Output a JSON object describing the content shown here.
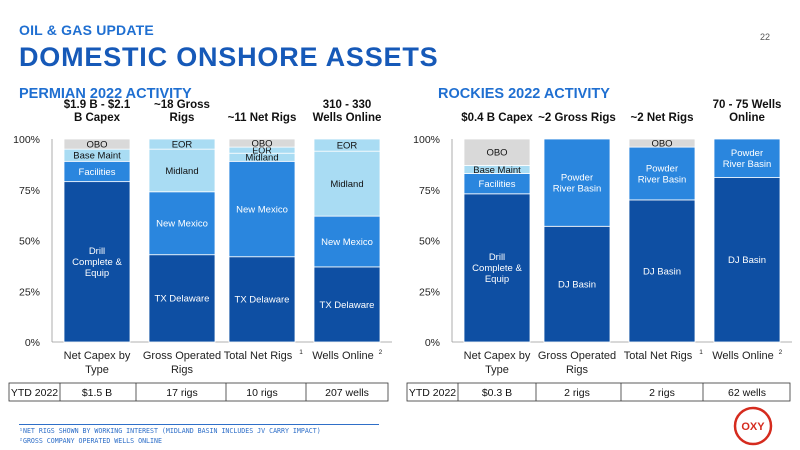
{
  "header": {
    "supertitle": "OIL & GAS UPDATE",
    "title": "DOMESTIC ONSHORE ASSETS",
    "page_number": "22"
  },
  "footnotes": [
    "¹NET RIGS SHOWN BY WORKING INTEREST (MIDLAND BASIN INCLUDES JV CARRY IMPACT)",
    "²GROSS COMPANY OPERATED WELLS ONLINE"
  ],
  "logo": {
    "text": "OXY"
  },
  "colors": {
    "dark_blue": "#0e4fa3",
    "mid_blue": "#2a86de",
    "light_blue": "#a9dcf3",
    "gray": "#d9d9d9",
    "title_blue": "#1659b8"
  },
  "chart_data": [
    {
      "type": "bar",
      "stacked": true,
      "title": "PERMIAN 2022 ACTIVITY",
      "ylim": [
        0,
        100
      ],
      "yticks": [
        "0%",
        "25%",
        "50%",
        "75%",
        "100%"
      ],
      "categories": [
        {
          "label": "Net Capex by Type",
          "sup": "",
          "header": "$1.9 B - $2.1 B Capex",
          "ytd": "$1.5 B"
        },
        {
          "label": "Gross Operated Rigs",
          "sup": "",
          "header": "~18 Gross Rigs",
          "ytd": "17 rigs"
        },
        {
          "label": "Total Net Rigs",
          "sup": "1",
          "header": "~11 Net Rigs",
          "ytd": "10 rigs"
        },
        {
          "label": "Wells Online",
          "sup": "2",
          "header": "310 - 330 Wells Online",
          "ytd": "207 wells"
        }
      ],
      "ytd_label": "YTD 2022",
      "bars": [
        [
          {
            "name": "Drill Complete & Equip",
            "value": 79,
            "color": "#0e4fa3"
          },
          {
            "name": "Facilities",
            "value": 10,
            "color": "#2a86de"
          },
          {
            "name": "Base Maint",
            "value": 6,
            "color": "#a9dcf3"
          },
          {
            "name": "OBO",
            "value": 5,
            "color": "#d9d9d9"
          }
        ],
        [
          {
            "name": "TX Delaware",
            "value": 43,
            "color": "#0e4fa3"
          },
          {
            "name": "New Mexico",
            "value": 31,
            "color": "#2a86de"
          },
          {
            "name": "Midland",
            "value": 21,
            "color": "#a9dcf3"
          },
          {
            "name": "EOR",
            "value": 5,
            "color": "#a9dcf3"
          }
        ],
        [
          {
            "name": "TX Delaware",
            "value": 42,
            "color": "#0e4fa3"
          },
          {
            "name": "New Mexico",
            "value": 47,
            "color": "#2a86de"
          },
          {
            "name": "Midland",
            "value": 4,
            "color": "#a9dcf3"
          },
          {
            "name": "EOR",
            "value": 3,
            "color": "#a9dcf3"
          },
          {
            "name": "OBO",
            "value": 4,
            "color": "#d9d9d9"
          }
        ],
        [
          {
            "name": "TX Delaware",
            "value": 37,
            "color": "#0e4fa3"
          },
          {
            "name": "New Mexico",
            "value": 25,
            "color": "#2a86de"
          },
          {
            "name": "Midland",
            "value": 32,
            "color": "#a9dcf3"
          },
          {
            "name": "EOR",
            "value": 6,
            "color": "#a9dcf3"
          }
        ]
      ]
    },
    {
      "type": "bar",
      "stacked": true,
      "title": "ROCKIES 2022 ACTIVITY",
      "ylim": [
        0,
        100
      ],
      "yticks": [
        "0%",
        "25%",
        "50%",
        "75%",
        "100%"
      ],
      "categories": [
        {
          "label": "Net Capex by Type",
          "sup": "",
          "header": "$0.4 B Capex",
          "ytd": "$0.3 B"
        },
        {
          "label": "Gross Operated Rigs",
          "sup": "",
          "header": "~2 Gross Rigs",
          "ytd": "2 rigs"
        },
        {
          "label": "Total Net Rigs",
          "sup": "1",
          "header": "~2 Net Rigs",
          "ytd": "2 rigs"
        },
        {
          "label": "Wells Online",
          "sup": "2",
          "header": "70 - 75 Wells Online",
          "ytd": "62 wells"
        }
      ],
      "ytd_label": "YTD 2022",
      "bars": [
        [
          {
            "name": "Drill Complete & Equip",
            "value": 73,
            "color": "#0e4fa3"
          },
          {
            "name": "Facilities",
            "value": 10,
            "color": "#2a86de"
          },
          {
            "name": "Base Maint",
            "value": 4,
            "color": "#a9dcf3"
          },
          {
            "name": "OBO",
            "value": 13,
            "color": "#d9d9d9"
          }
        ],
        [
          {
            "name": "DJ Basin",
            "value": 57,
            "color": "#0e4fa3"
          },
          {
            "name": "Powder River Basin",
            "value": 43,
            "color": "#2a86de"
          }
        ],
        [
          {
            "name": "DJ Basin",
            "value": 70,
            "color": "#0e4fa3"
          },
          {
            "name": "Powder River Basin",
            "value": 26,
            "color": "#2a86de"
          },
          {
            "name": "OBO",
            "value": 4,
            "color": "#d9d9d9"
          }
        ],
        [
          {
            "name": "DJ Basin",
            "value": 81,
            "color": "#0e4fa3"
          },
          {
            "name": "Powder River Basin",
            "value": 19,
            "color": "#2a86de"
          }
        ]
      ]
    }
  ]
}
